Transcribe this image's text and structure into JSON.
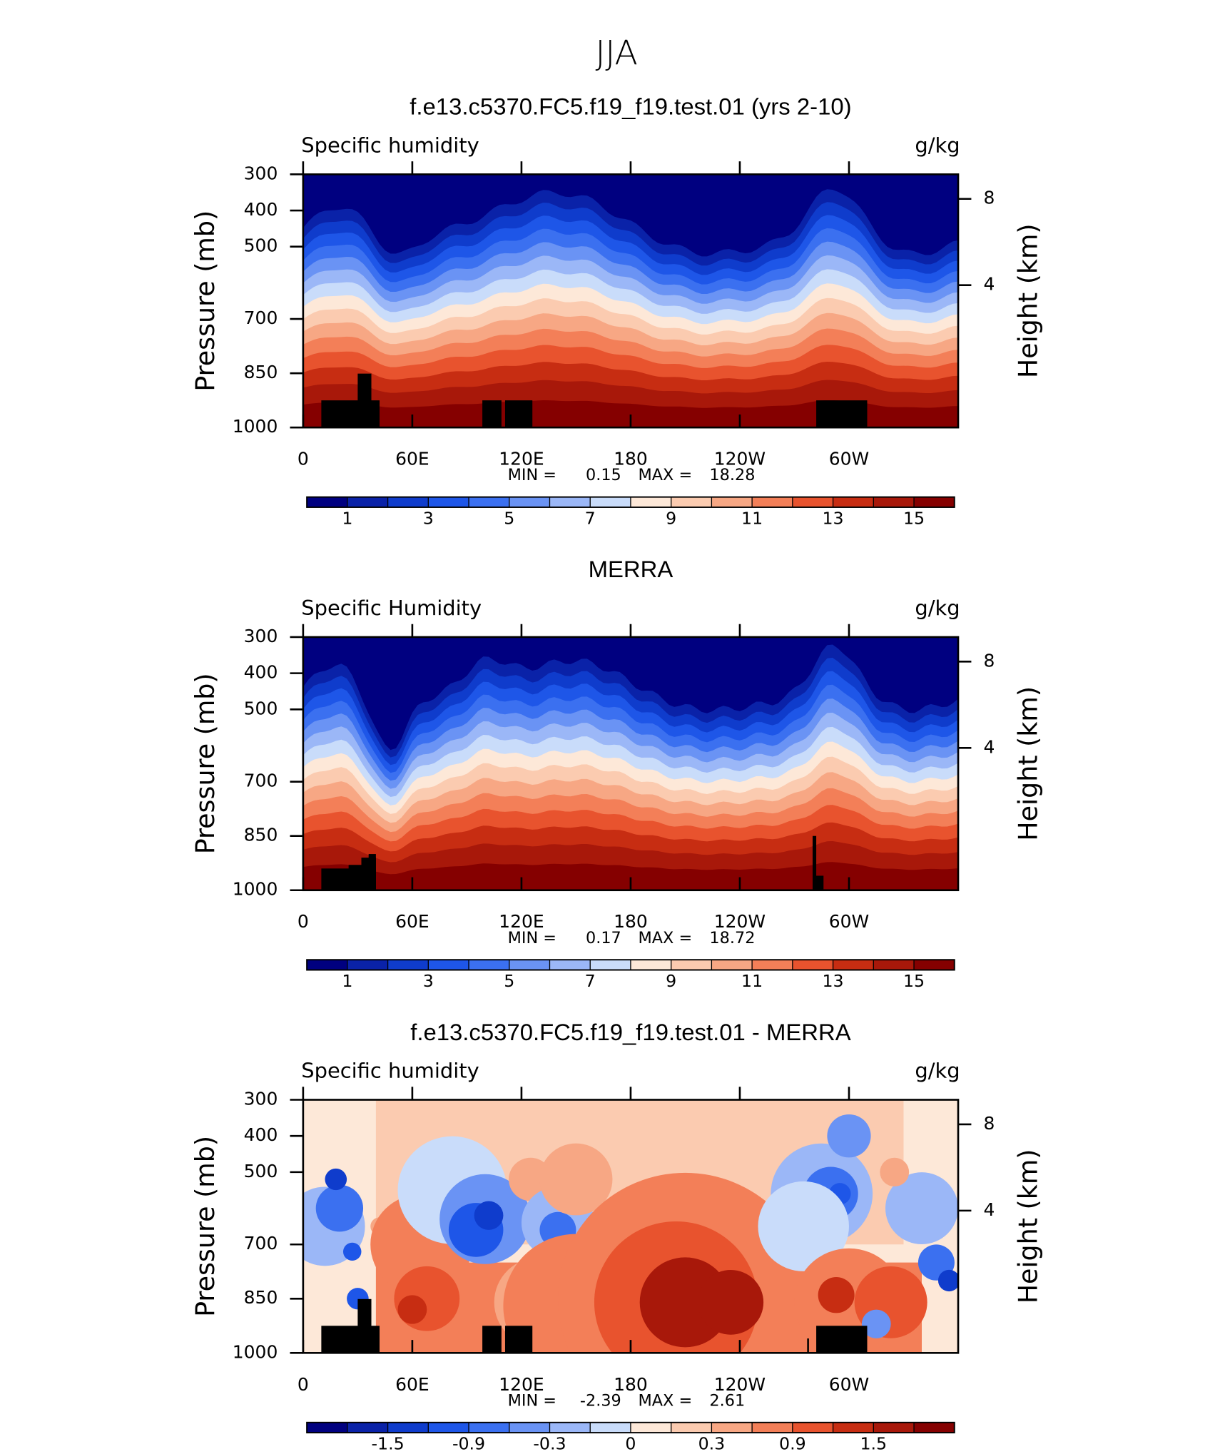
{
  "title": "JJA",
  "chart_data": [
    {
      "type": "contour",
      "title": "f.e13.c5370.FC5.f19_f19.test.01 (yrs 2-10)",
      "subtitle": "Specific humidity",
      "units": "g/kg",
      "ylabel": "Pressure (mb)",
      "y2label": "Height (km)",
      "xlim": [
        0,
        360
      ],
      "xticks": [
        0,
        {
          "value": 60,
          "label": "60E"
        },
        {
          "value": 120,
          "label": "120E"
        },
        180,
        {
          "value": 240,
          "label": "120W"
        },
        {
          "value": 300,
          "label": "60W"
        }
      ],
      "ylim": [
        1000,
        300
      ],
      "yticks": [
        300,
        400,
        500,
        700,
        850,
        1000
      ],
      "y2ticks": [
        8,
        4
      ],
      "min_label": "MIN =",
      "min": 0.15,
      "max_label": "MAX =",
      "max": 18.28,
      "colorbar": {
        "colors": [
          "#000080",
          "#0a22a8",
          "#0f3ccc",
          "#1e56e8",
          "#3b70f0",
          "#6a93f4",
          "#9bb7f7",
          "#c9dcfa",
          "#fde8d8",
          "#fbcbb0",
          "#f7a784",
          "#f37f58",
          "#e8532e",
          "#c72d12",
          "#a8180a",
          "#850000"
        ],
        "levels": [
          1,
          2,
          3,
          4,
          5,
          6,
          7,
          8,
          9,
          10,
          11,
          12,
          13,
          14,
          15
        ],
        "ticks": [
          1,
          3,
          5,
          7,
          9,
          11,
          13,
          15
        ]
      }
    },
    {
      "type": "contour",
      "title": "MERRA",
      "subtitle": "Specific Humidity",
      "units": "g/kg",
      "ylabel": "Pressure (mb)",
      "y2label": "Height (km)",
      "xlim": [
        0,
        360
      ],
      "xticks": [
        0,
        {
          "value": 60,
          "label": "60E"
        },
        {
          "value": 120,
          "label": "120E"
        },
        180,
        {
          "value": 240,
          "label": "120W"
        },
        {
          "value": 300,
          "label": "60W"
        }
      ],
      "ylim": [
        1000,
        300
      ],
      "yticks": [
        300,
        400,
        500,
        700,
        850,
        1000
      ],
      "y2ticks": [
        8,
        4
      ],
      "min_label": "MIN =",
      "min": 0.17,
      "max_label": "MAX =",
      "max": 18.72,
      "colorbar": {
        "colors": [
          "#000080",
          "#0a22a8",
          "#0f3ccc",
          "#1e56e8",
          "#3b70f0",
          "#6a93f4",
          "#9bb7f7",
          "#c9dcfa",
          "#fde8d8",
          "#fbcbb0",
          "#f7a784",
          "#f37f58",
          "#e8532e",
          "#c72d12",
          "#a8180a",
          "#850000"
        ],
        "levels": [
          1,
          2,
          3,
          4,
          5,
          6,
          7,
          8,
          9,
          10,
          11,
          12,
          13,
          14,
          15
        ],
        "ticks": [
          1,
          3,
          5,
          7,
          9,
          11,
          13,
          15
        ]
      }
    },
    {
      "type": "contour",
      "title": "f.e13.c5370.FC5.f19_f19.test.01 - MERRA",
      "subtitle": "Specific humidity",
      "units": "g/kg",
      "ylabel": "Pressure (mb)",
      "y2label": "Height (km)",
      "xlim": [
        0,
        360
      ],
      "xticks": [
        0,
        {
          "value": 60,
          "label": "60E"
        },
        {
          "value": 120,
          "label": "120E"
        },
        180,
        {
          "value": 240,
          "label": "120W"
        },
        {
          "value": 300,
          "label": "60W"
        }
      ],
      "ylim": [
        1000,
        300
      ],
      "yticks": [
        300,
        400,
        500,
        700,
        850,
        1000
      ],
      "y2ticks": [
        8,
        4
      ],
      "min_label": "MIN =",
      "min": -2.39,
      "max_label": "MAX =",
      "max": 2.61,
      "colorbar": {
        "colors": [
          "#000080",
          "#0a22a8",
          "#0f3ccc",
          "#1e56e8",
          "#3b70f0",
          "#6a93f4",
          "#9bb7f7",
          "#c9dcfa",
          "#fde8d8",
          "#fbcbb0",
          "#f7a784",
          "#f37f58",
          "#e8532e",
          "#c72d12",
          "#a8180a",
          "#850000"
        ],
        "levels": [
          -1.8,
          -1.5,
          -1.2,
          -0.9,
          -0.6,
          -0.3,
          -0.15,
          0,
          0.15,
          0.3,
          0.6,
          0.9,
          1.2,
          1.5,
          1.8
        ],
        "ticks": [
          -1.5,
          -0.9,
          -0.3,
          0,
          0.3,
          0.9,
          1.5
        ]
      }
    }
  ]
}
